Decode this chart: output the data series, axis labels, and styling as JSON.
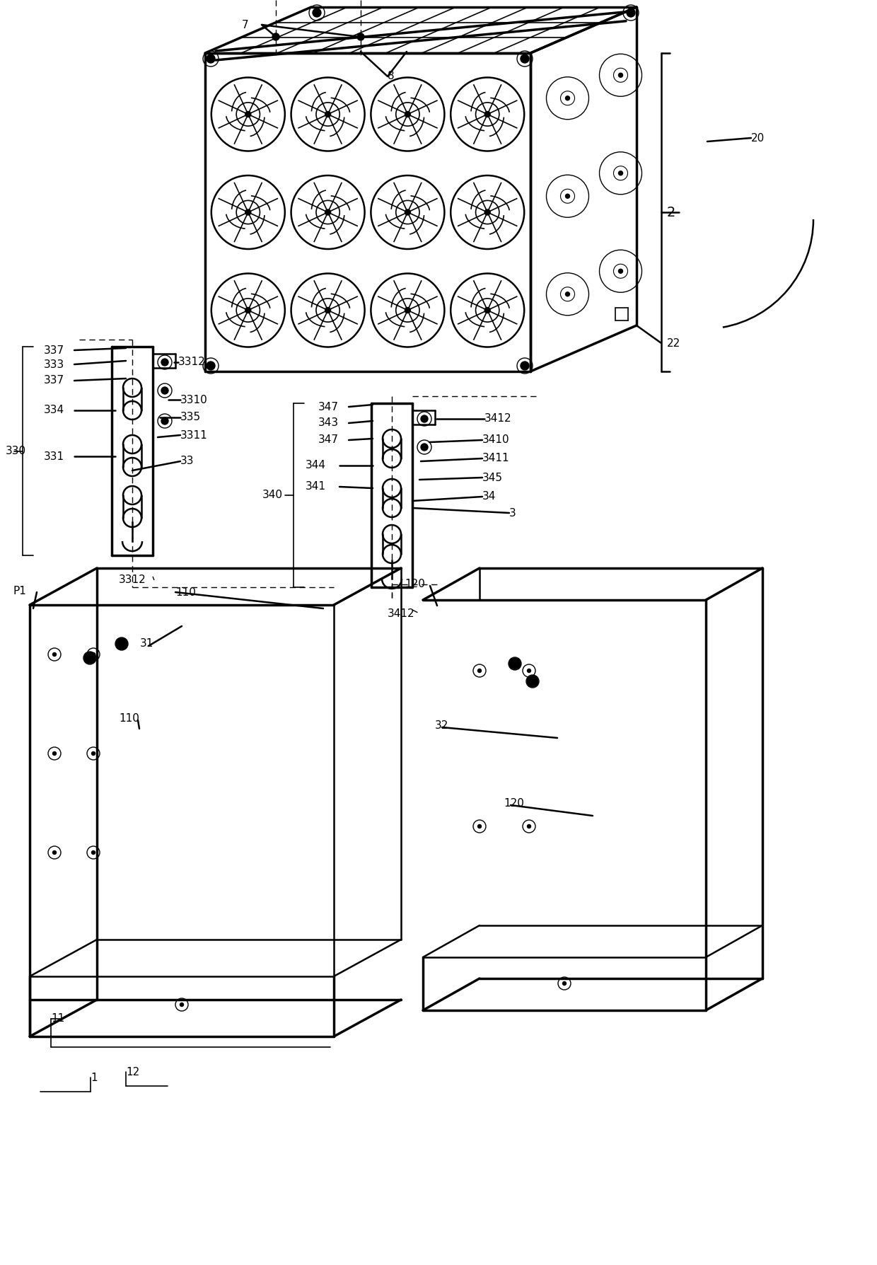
{
  "bg_color": "#ffffff",
  "line_color": "#000000",
  "label_fontsize": 11,
  "fan_rows": 3,
  "fan_cols": 4,
  "fan_r": 52
}
